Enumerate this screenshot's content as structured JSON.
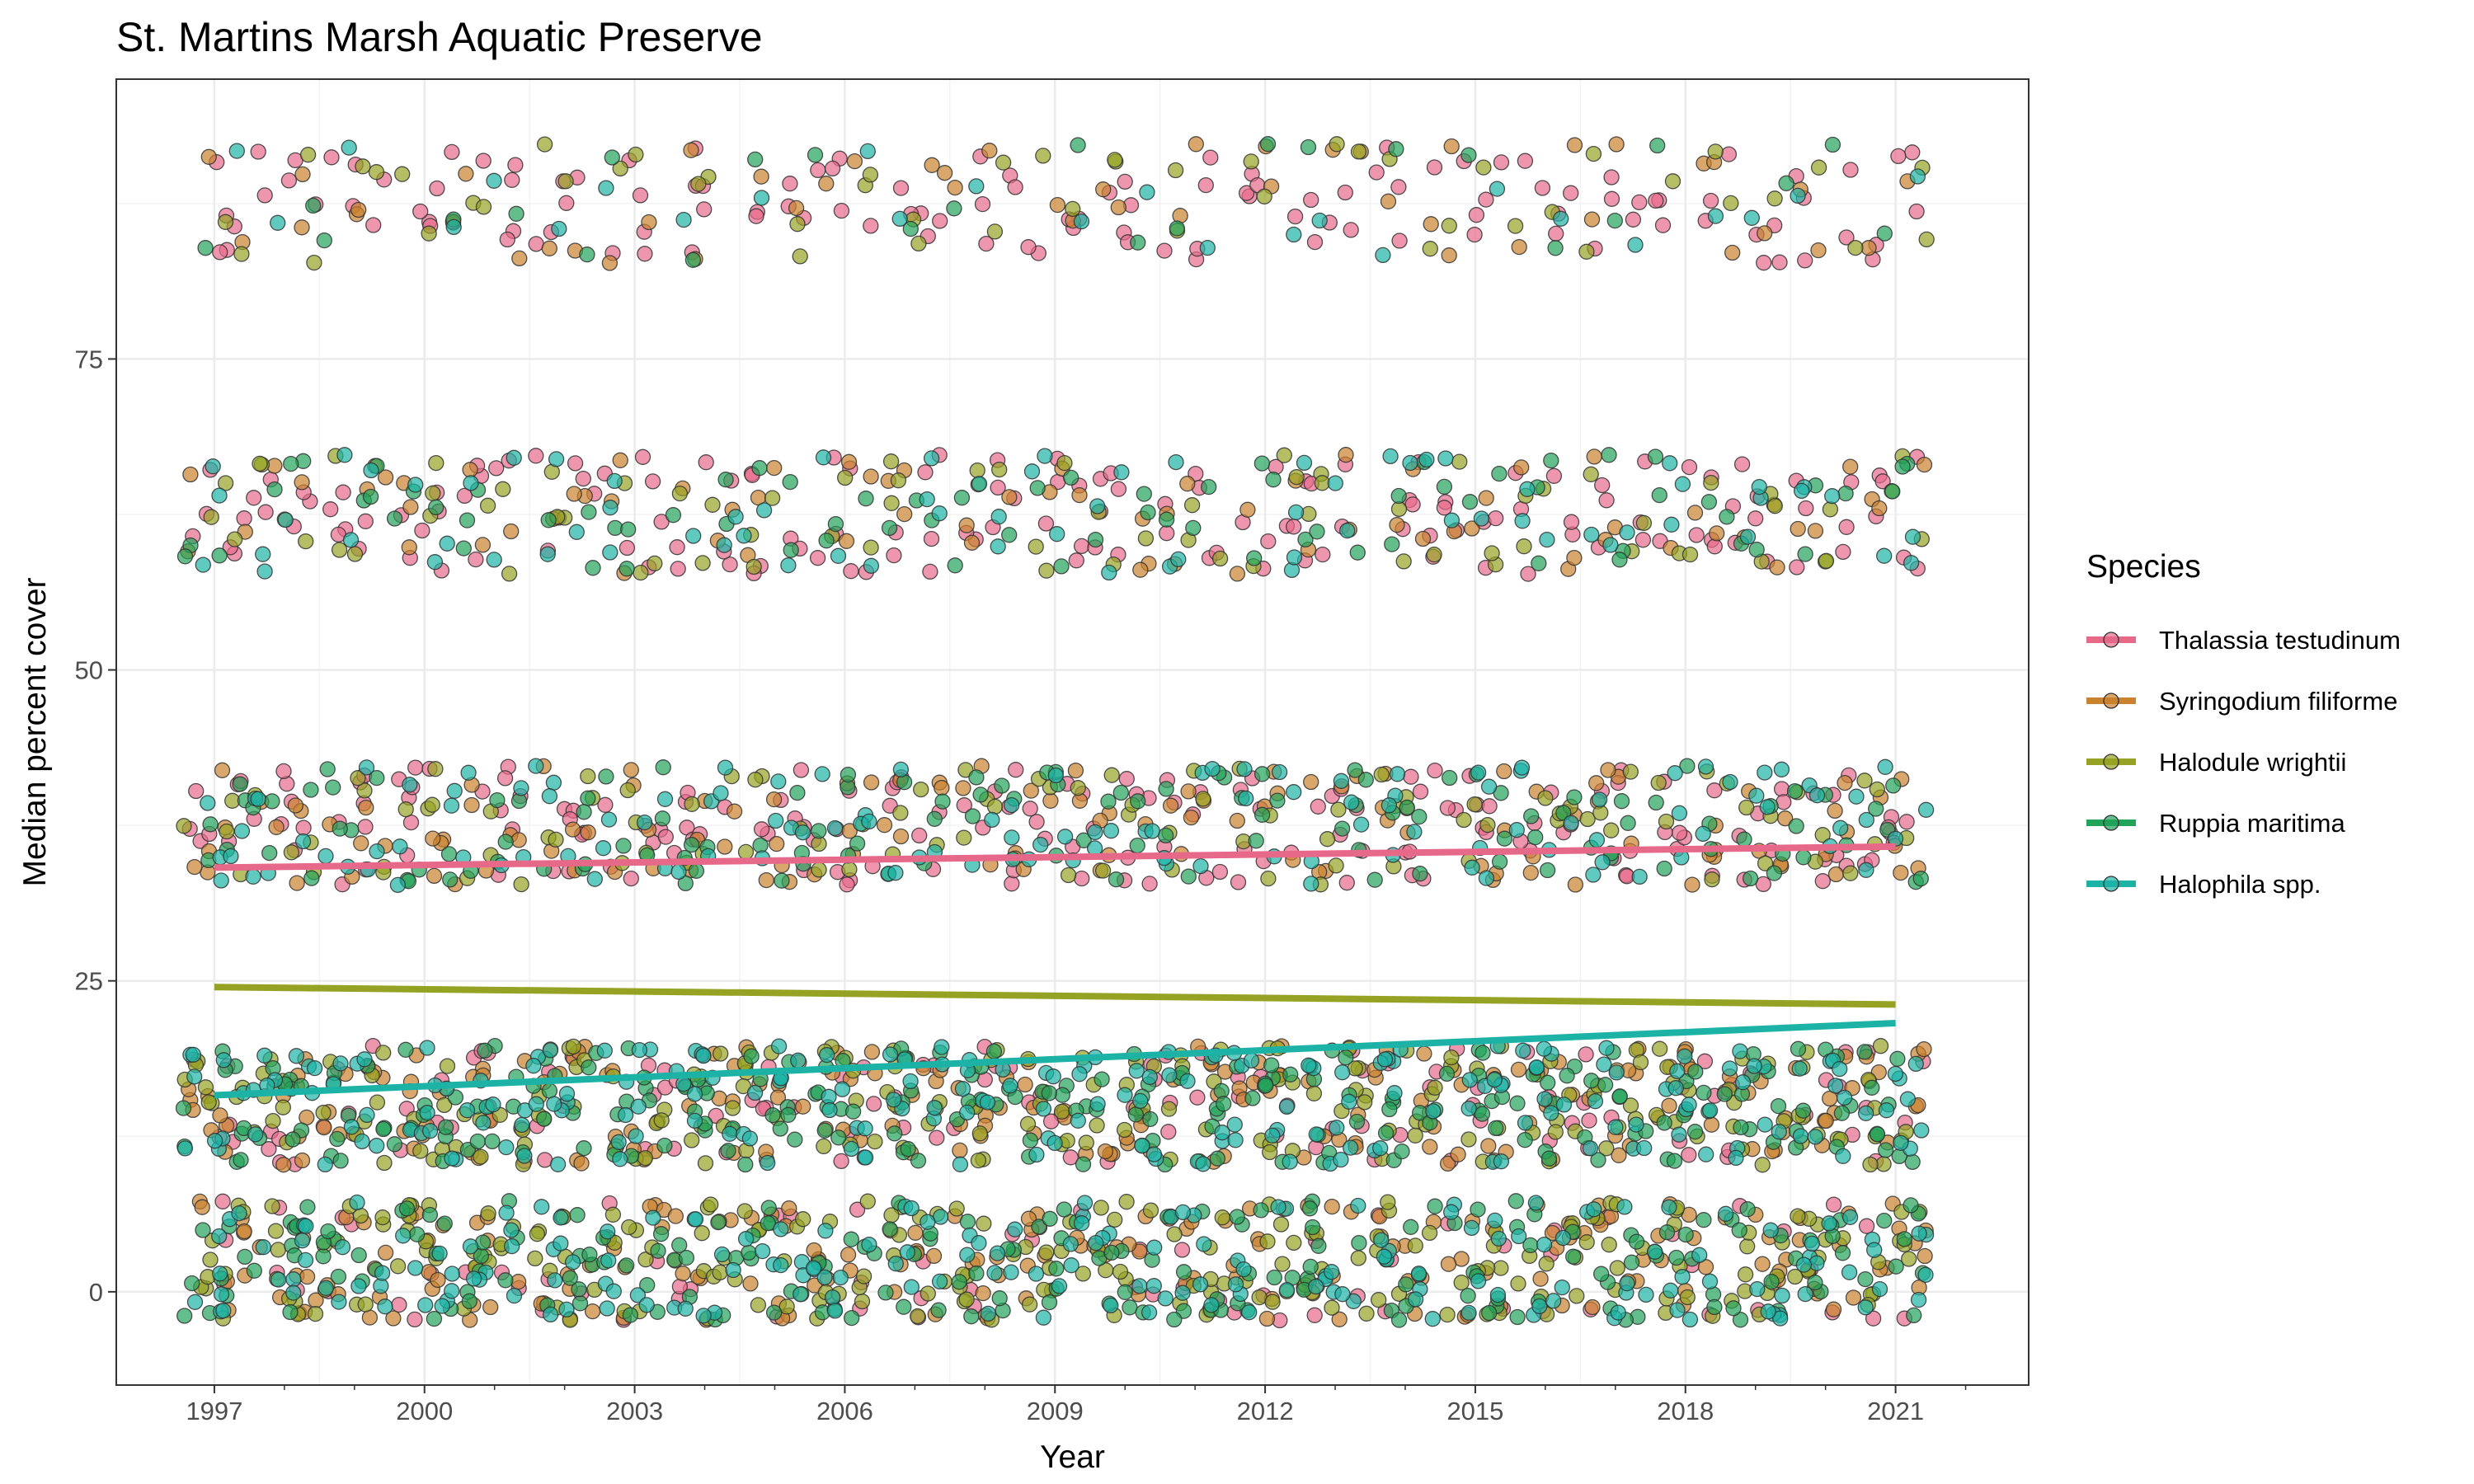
{
  "chart_data": {
    "type": "scatter",
    "title": "St. Martins Marsh Aquatic Preserve",
    "xlabel": "Year",
    "ylabel": "Median percent cover",
    "xlim": [
      1995.6,
      2022.9
    ],
    "ylim": [
      -7.5,
      97.5
    ],
    "x_ticks": [
      1997,
      2000,
      2003,
      2006,
      2009,
      2012,
      2015,
      2018,
      2021
    ],
    "y_ticks": [
      0,
      25,
      50,
      75
    ],
    "grid": true,
    "legend_title": "Species",
    "legend_position": "right",
    "cover_bands": [
      {
        "center": 2.5,
        "jitter": 4.8
      },
      {
        "center": 15,
        "jitter": 4.8
      },
      {
        "center": 37.5,
        "jitter": 4.8
      },
      {
        "center": 62.5,
        "jitter": 4.8
      },
      {
        "center": 87.5,
        "jitter": 4.8
      }
    ],
    "year_range": [
      1997,
      2021
    ],
    "series": [
      {
        "name": "Thalassia testudinum",
        "color": "#E7698A",
        "trend": {
          "x": [
            1997,
            2021
          ],
          "y": [
            34.1,
            35.8
          ]
        },
        "band_weights": [
          0.12,
          0.18,
          0.28,
          0.22,
          0.2
        ]
      },
      {
        "name": "Syringodium filiforme",
        "color": "#C9822E",
        "trend": null,
        "band_weights": [
          0.3,
          0.3,
          0.2,
          0.12,
          0.08
        ]
      },
      {
        "name": "Halodule wrightii",
        "color": "#96A223",
        "trend": {
          "x": [
            1997,
            2021
          ],
          "y": [
            24.5,
            23.1
          ]
        },
        "band_weights": [
          0.35,
          0.3,
          0.15,
          0.12,
          0.08
        ]
      },
      {
        "name": "Ruppia maritima",
        "color": "#22A35A",
        "trend": null,
        "band_weights": [
          0.3,
          0.35,
          0.2,
          0.1,
          0.05
        ]
      },
      {
        "name": "Halophila spp.",
        "color": "#1CB3A6",
        "trend": {
          "x": [
            1997,
            2021
          ],
          "y": [
            15.8,
            21.6
          ]
        },
        "band_weights": [
          0.3,
          0.35,
          0.2,
          0.1,
          0.05
        ]
      }
    ]
  }
}
